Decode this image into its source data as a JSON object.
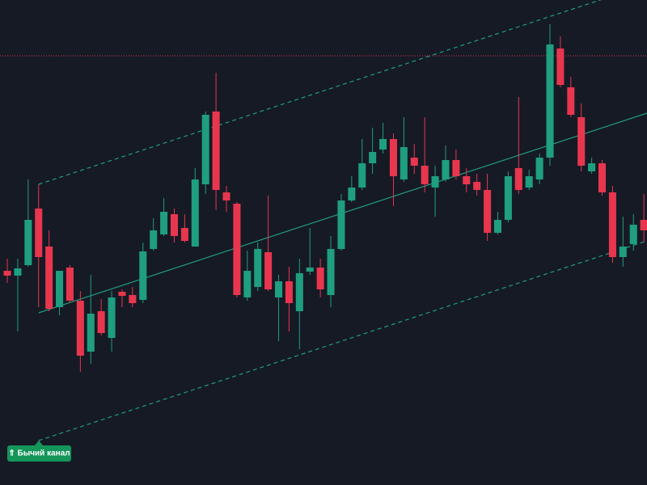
{
  "chart_data": {
    "type": "candlestick",
    "open": [
      265,
      259,
      272,
      342,
      295,
      220,
      269,
      228,
      165,
      215,
      182,
      239,
      235,
      229,
      292,
      310,
      335,
      318,
      295,
      372,
      462,
      362,
      348,
      232,
      245,
      288,
      232,
      252,
      215,
      264,
      269,
      235,
      292,
      352,
      368,
      398,
      415,
      428,
      378,
      405,
      395,
      368,
      378,
      402,
      382,
      375,
      365,
      312,
      328,
      392,
      368,
      378,
      405,
      540,
      492,
      455,
      388,
      398,
      362,
      282,
      298,
      328
    ],
    "high": [
      280,
      280,
      378,
      372,
      315,
      265,
      272,
      240,
      260,
      230,
      240,
      242,
      245,
      300,
      330,
      355,
      342,
      335,
      392,
      462,
      510,
      370,
      350,
      290,
      300,
      358,
      260,
      270,
      280,
      318,
      280,
      308,
      360,
      382,
      428,
      442,
      448,
      435,
      455,
      422,
      455,
      395,
      420,
      415,
      392,
      385,
      385,
      338,
      388,
      480,
      390,
      410,
      570,
      555,
      505,
      472,
      405,
      402,
      370,
      332,
      335,
      360
    ],
    "low": [
      250,
      190,
      270,
      220,
      215,
      210,
      225,
      140,
      150,
      185,
      165,
      220,
      220,
      225,
      290,
      308,
      300,
      300,
      295,
      360,
      340,
      338,
      232,
      228,
      240,
      240,
      178,
      190,
      168,
      260,
      232,
      220,
      290,
      350,
      365,
      385,
      410,
      345,
      375,
      385,
      362,
      332,
      375,
      378,
      362,
      358,
      302,
      310,
      325,
      360,
      365,
      372,
      395,
      492,
      455,
      388,
      385,
      358,
      275,
      270,
      290,
      300
    ],
    "close": [
      259,
      268,
      328,
      282,
      218,
      265,
      228,
      160,
      212,
      188,
      232,
      234,
      225,
      289,
      315,
      338,
      308,
      302,
      378,
      458,
      365,
      352,
      235,
      265,
      292,
      242,
      252,
      225,
      262,
      269,
      242,
      292,
      352,
      368,
      398,
      412,
      428,
      382,
      418,
      395,
      372,
      382,
      402,
      382,
      372,
      365,
      312,
      328,
      382,
      365,
      382,
      405,
      545,
      495,
      458,
      395,
      398,
      362,
      282,
      295,
      322,
      315
    ],
    "up_color": "#1f9e80",
    "down_color": "#e8364f",
    "xlim": [
      -0.7,
      61.3
    ],
    "ylim": [
      0,
      600
    ],
    "channel": {
      "x": [
        3,
        61.3
      ],
      "mid": [
        213,
        460
      ],
      "upper": [
        372,
        619
      ],
      "lower": [
        55,
        302
      ],
      "color": "#1f9e80"
    },
    "level": 531,
    "level_color": "#e8364f",
    "annotation": "⇑ Бычий канал"
  }
}
